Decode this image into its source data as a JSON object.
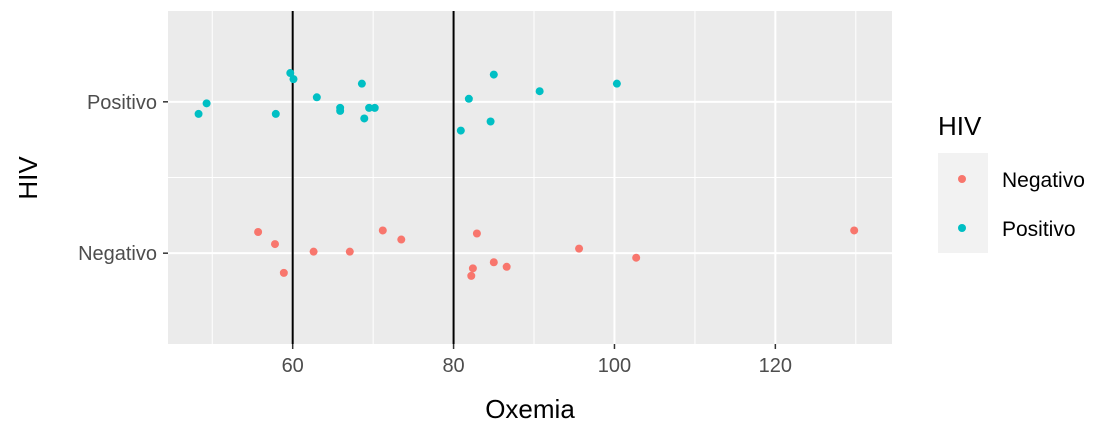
{
  "chart_data": {
    "type": "scatter",
    "xlabel": "Oxemia",
    "ylabel": "HIV",
    "xlim": [
      44.5,
      134.5
    ],
    "x_ticks": [
      60,
      80,
      100,
      120
    ],
    "x_tick_labels": [
      "60",
      "80",
      "100",
      "120"
    ],
    "categories": [
      "Negativo",
      "Positivo"
    ],
    "reference_lines_x": [
      60,
      80
    ],
    "grid": true,
    "legend": {
      "title": "HIV",
      "placement": "right",
      "entries": [
        "Negativo",
        "Positivo"
      ]
    },
    "colors": {
      "Negativo": "#F8766D",
      "Positivo": "#00BFC4",
      "panel": "#EBEBEB",
      "grid": "#FFFFFF",
      "reference_line": "#000000"
    },
    "series": [
      {
        "name": "Negativo",
        "category": "Negativo",
        "points": [
          {
            "x": 55.7,
            "jitter": 0.14
          },
          {
            "x": 57.8,
            "jitter": 0.06
          },
          {
            "x": 58.9,
            "jitter": -0.13
          },
          {
            "x": 62.6,
            "jitter": 0.01
          },
          {
            "x": 67.1,
            "jitter": 0.01
          },
          {
            "x": 71.2,
            "jitter": 0.15
          },
          {
            "x": 73.5,
            "jitter": 0.09
          },
          {
            "x": 82.2,
            "jitter": -0.15
          },
          {
            "x": 82.4,
            "jitter": -0.1
          },
          {
            "x": 82.9,
            "jitter": 0.13
          },
          {
            "x": 85.0,
            "jitter": -0.06
          },
          {
            "x": 86.6,
            "jitter": -0.09
          },
          {
            "x": 95.6,
            "jitter": 0.03
          },
          {
            "x": 102.7,
            "jitter": -0.03
          },
          {
            "x": 129.8,
            "jitter": 0.15
          }
        ]
      },
      {
        "name": "Positivo",
        "category": "Positivo",
        "points": [
          {
            "x": 48.3,
            "jitter": -0.08
          },
          {
            "x": 49.3,
            "jitter": -0.01
          },
          {
            "x": 57.9,
            "jitter": -0.08
          },
          {
            "x": 59.7,
            "jitter": 0.19
          },
          {
            "x": 60.1,
            "jitter": 0.15
          },
          {
            "x": 63.0,
            "jitter": 0.03
          },
          {
            "x": 65.9,
            "jitter": -0.06
          },
          {
            "x": 65.9,
            "jitter": -0.04
          },
          {
            "x": 68.6,
            "jitter": 0.12
          },
          {
            "x": 68.9,
            "jitter": -0.11
          },
          {
            "x": 69.5,
            "jitter": -0.04
          },
          {
            "x": 70.2,
            "jitter": -0.04
          },
          {
            "x": 80.9,
            "jitter": -0.19
          },
          {
            "x": 81.9,
            "jitter": 0.02
          },
          {
            "x": 84.6,
            "jitter": -0.13
          },
          {
            "x": 85.0,
            "jitter": 0.18
          },
          {
            "x": 90.7,
            "jitter": 0.07
          },
          {
            "x": 100.3,
            "jitter": 0.12
          }
        ]
      }
    ]
  }
}
